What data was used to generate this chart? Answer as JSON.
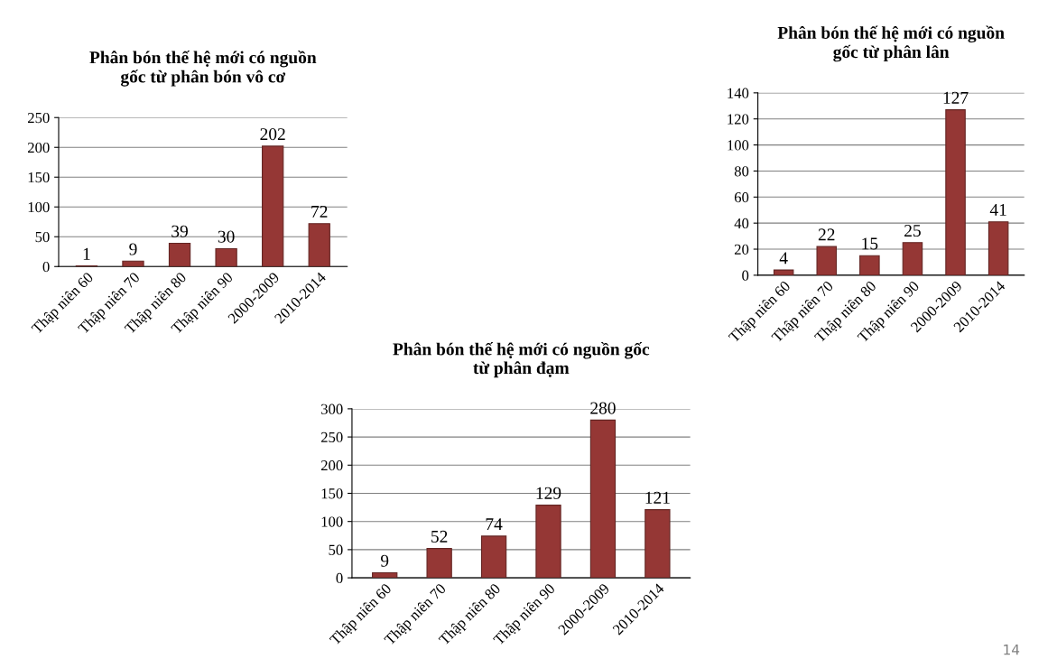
{
  "chart_data": [
    {
      "type": "bar",
      "title": "Phân bón thế hệ mới có nguồn\ngốc từ phân bón vô cơ",
      "categories": [
        "Thập niên 60",
        "Thập niên 70",
        "Thập niên 80",
        "Thập niên 90",
        "2000-2009",
        "2010-2014"
      ],
      "values": [
        1,
        9,
        39,
        30,
        202,
        72
      ],
      "color": "#953735",
      "ylim": [
        0,
        250
      ],
      "yticks": [
        0,
        50,
        100,
        150,
        200,
        250
      ],
      "grid": "y",
      "data_labels": true
    },
    {
      "type": "bar",
      "title": "Phân bón thế hệ mới có nguồn\ngốc từ phân lân",
      "categories": [
        "Thập niên 60",
        "Thập niên 70",
        "Thập niên 80",
        "Thập niên 90",
        "2000-2009",
        "2010-2014"
      ],
      "values": [
        4,
        22,
        15,
        25,
        127,
        41
      ],
      "color": "#953735",
      "ylim": [
        0,
        140
      ],
      "yticks": [
        0,
        20,
        40,
        60,
        80,
        100,
        120,
        140
      ],
      "grid": "y",
      "data_labels": true
    },
    {
      "type": "bar",
      "title": "Phân bón thế hệ mới có nguồn gốc\ntừ phân đạm",
      "categories": [
        "Thập niên 60",
        "Thập niên 70",
        "Thập niên 80",
        "Thập niên 90",
        "2000-2009",
        "2010-2014"
      ],
      "values": [
        9,
        52,
        74,
        129,
        280,
        121
      ],
      "color": "#953735",
      "ylim": [
        0,
        300
      ],
      "yticks": [
        0,
        50,
        100,
        150,
        200,
        250,
        300
      ],
      "grid": "y",
      "data_labels": true,
      "annotations": [
        "14"
      ]
    }
  ]
}
